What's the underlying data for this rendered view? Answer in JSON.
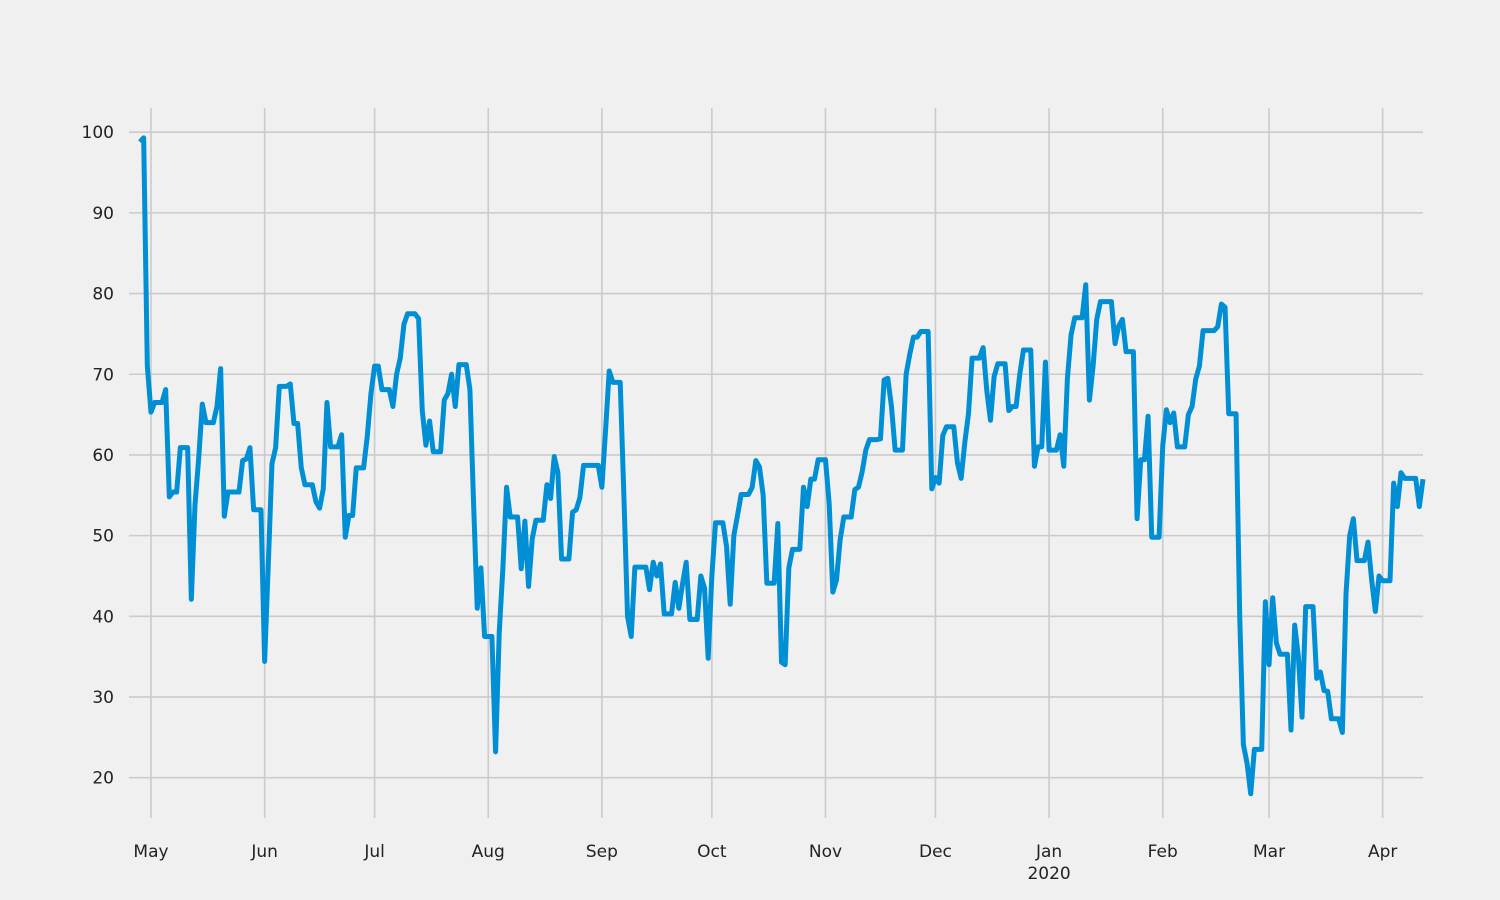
{
  "chart_data": {
    "type": "line",
    "title": "",
    "xlabel": "",
    "ylabel": "",
    "grid": true,
    "legend": "none",
    "colors": {
      "background": "#f0f0f0",
      "grid": "#cbcbcb",
      "line": "#008fd5",
      "text": "#222222"
    },
    "xlim": [
      "2019-04-25",
      "2020-04-12"
    ],
    "ylim": [
      15,
      103
    ],
    "x_ticks": [
      {
        "date": "2019-05-01",
        "label": "May",
        "sublabel": ""
      },
      {
        "date": "2019-06-01",
        "label": "Jun",
        "sublabel": ""
      },
      {
        "date": "2019-07-01",
        "label": "Jul",
        "sublabel": ""
      },
      {
        "date": "2019-08-01",
        "label": "Aug",
        "sublabel": ""
      },
      {
        "date": "2019-09-01",
        "label": "Sep",
        "sublabel": ""
      },
      {
        "date": "2019-10-01",
        "label": "Oct",
        "sublabel": ""
      },
      {
        "date": "2019-11-01",
        "label": "Nov",
        "sublabel": ""
      },
      {
        "date": "2019-12-01",
        "label": "Dec",
        "sublabel": ""
      },
      {
        "date": "2020-01-01",
        "label": "Jan",
        "sublabel": "2020"
      },
      {
        "date": "2020-02-01",
        "label": "Feb",
        "sublabel": ""
      },
      {
        "date": "2020-03-01",
        "label": "Mar",
        "sublabel": ""
      },
      {
        "date": "2020-04-01",
        "label": "Apr",
        "sublabel": ""
      }
    ],
    "y_ticks": [
      20,
      30,
      40,
      50,
      60,
      70,
      80,
      90,
      100
    ],
    "series": [
      {
        "x": [
          "2019-04-28",
          "2019-04-29",
          "2019-04-30",
          "2019-05-01",
          "2019-05-02",
          "2019-05-03",
          "2019-05-04",
          "2019-05-05",
          "2019-05-06",
          "2019-05-07",
          "2019-05-08",
          "2019-05-09",
          "2019-05-10",
          "2019-05-11",
          "2019-05-12",
          "2019-05-13",
          "2019-05-14",
          "2019-05-15",
          "2019-05-16",
          "2019-05-17",
          "2019-05-18",
          "2019-05-19",
          "2019-05-20",
          "2019-05-21",
          "2019-05-22",
          "2019-05-23",
          "2019-05-24",
          "2019-05-25",
          "2019-05-26",
          "2019-05-27",
          "2019-05-28",
          "2019-05-29",
          "2019-05-30",
          "2019-05-31",
          "2019-06-01",
          "2019-06-02",
          "2019-06-03",
          "2019-06-04",
          "2019-06-05",
          "2019-06-06",
          "2019-06-07",
          "2019-06-08",
          "2019-06-09",
          "2019-06-10",
          "2019-06-11",
          "2019-06-12",
          "2019-06-13",
          "2019-06-14",
          "2019-06-15",
          "2019-06-16",
          "2019-06-17",
          "2019-06-18",
          "2019-06-19",
          "2019-06-20",
          "2019-06-21",
          "2019-06-22",
          "2019-06-23",
          "2019-06-24",
          "2019-06-25",
          "2019-06-26",
          "2019-06-27",
          "2019-06-28",
          "2019-06-29",
          "2019-06-30",
          "2019-07-01",
          "2019-07-02",
          "2019-07-03",
          "2019-07-04",
          "2019-07-05",
          "2019-07-06",
          "2019-07-07",
          "2019-07-08",
          "2019-07-09",
          "2019-07-10",
          "2019-07-11",
          "2019-07-12",
          "2019-07-13",
          "2019-07-14",
          "2019-07-15",
          "2019-07-16",
          "2019-07-17",
          "2019-07-18",
          "2019-07-19",
          "2019-07-20",
          "2019-07-21",
          "2019-07-22",
          "2019-07-23",
          "2019-07-24",
          "2019-07-25",
          "2019-07-26",
          "2019-07-27",
          "2019-07-28",
          "2019-07-29",
          "2019-07-30",
          "2019-07-31",
          "2019-08-01",
          "2019-08-02",
          "2019-08-03",
          "2019-08-04",
          "2019-08-05",
          "2019-08-06",
          "2019-08-07",
          "2019-08-08",
          "2019-08-09",
          "2019-08-10",
          "2019-08-11",
          "2019-08-12",
          "2019-08-13",
          "2019-08-14",
          "2019-08-15",
          "2019-08-16",
          "2019-08-17",
          "2019-08-18",
          "2019-08-19",
          "2019-08-20",
          "2019-08-21",
          "2019-08-22",
          "2019-08-23",
          "2019-08-24",
          "2019-08-25",
          "2019-08-26",
          "2019-08-27",
          "2019-08-28",
          "2019-08-29",
          "2019-08-30",
          "2019-08-31",
          "2019-09-01",
          "2019-09-02",
          "2019-09-03",
          "2019-09-04",
          "2019-09-05",
          "2019-09-06",
          "2019-09-07",
          "2019-09-08",
          "2019-09-09",
          "2019-09-10",
          "2019-09-11",
          "2019-09-12",
          "2019-09-13",
          "2019-09-14",
          "2019-09-15",
          "2019-09-16",
          "2019-09-17",
          "2019-09-18",
          "2019-09-19",
          "2019-09-20",
          "2019-09-21",
          "2019-09-22",
          "2019-09-23",
          "2019-09-24",
          "2019-09-25",
          "2019-09-26",
          "2019-09-27",
          "2019-09-28",
          "2019-09-29",
          "2019-09-30",
          "2019-10-01",
          "2019-10-02",
          "2019-10-03",
          "2019-10-04",
          "2019-10-05",
          "2019-10-06",
          "2019-10-07",
          "2019-10-08",
          "2019-10-09",
          "2019-10-10",
          "2019-10-11",
          "2019-10-12",
          "2019-10-13",
          "2019-10-14",
          "2019-10-15",
          "2019-10-16",
          "2019-10-17",
          "2019-10-18",
          "2019-10-19",
          "2019-10-20",
          "2019-10-21",
          "2019-10-22",
          "2019-10-23",
          "2019-10-24",
          "2019-10-25",
          "2019-10-26",
          "2019-10-27",
          "2019-10-28",
          "2019-10-29",
          "2019-10-30",
          "2019-10-31",
          "2019-11-01",
          "2019-11-02",
          "2019-11-03",
          "2019-11-04",
          "2019-11-05",
          "2019-11-06",
          "2019-11-07",
          "2019-11-08",
          "2019-11-09",
          "2019-11-10",
          "2019-11-11",
          "2019-11-12",
          "2019-11-13",
          "2019-11-14",
          "2019-11-15",
          "2019-11-16",
          "2019-11-17",
          "2019-11-18",
          "2019-11-19",
          "2019-11-20",
          "2019-11-21",
          "2019-11-22",
          "2019-11-23",
          "2019-11-24",
          "2019-11-25",
          "2019-11-26",
          "2019-11-27",
          "2019-11-28",
          "2019-11-29",
          "2019-11-30",
          "2019-12-01",
          "2019-12-02",
          "2019-12-03",
          "2019-12-04",
          "2019-12-05",
          "2019-12-06",
          "2019-12-07",
          "2019-12-08",
          "2019-12-09",
          "2019-12-10",
          "2019-12-11",
          "2019-12-12",
          "2019-12-13",
          "2019-12-14",
          "2019-12-15",
          "2019-12-16",
          "2019-12-17",
          "2019-12-18",
          "2019-12-19",
          "2019-12-20",
          "2019-12-21",
          "2019-12-22",
          "2019-12-23",
          "2019-12-24",
          "2019-12-25",
          "2019-12-26",
          "2019-12-27",
          "2019-12-28",
          "2019-12-29",
          "2019-12-30",
          "2019-12-31",
          "2020-01-01",
          "2020-01-02",
          "2020-01-03",
          "2020-01-04",
          "2020-01-05",
          "2020-01-06",
          "2020-01-07",
          "2020-01-08",
          "2020-01-09",
          "2020-01-10",
          "2020-01-11",
          "2020-01-12",
          "2020-01-13",
          "2020-01-14",
          "2020-01-15",
          "2020-01-16",
          "2020-01-17",
          "2020-01-18",
          "2020-01-19",
          "2020-01-20",
          "2020-01-21",
          "2020-01-22",
          "2020-01-23",
          "2020-01-24",
          "2020-01-25",
          "2020-01-26",
          "2020-01-27",
          "2020-01-28",
          "2020-01-29",
          "2020-01-30",
          "2020-01-31",
          "2020-02-01",
          "2020-02-02",
          "2020-02-03",
          "2020-02-04",
          "2020-02-05",
          "2020-02-06",
          "2020-02-07",
          "2020-02-08",
          "2020-02-09",
          "2020-02-10",
          "2020-02-11",
          "2020-02-12",
          "2020-02-13",
          "2020-02-14",
          "2020-02-15",
          "2020-02-16",
          "2020-02-17",
          "2020-02-18",
          "2020-02-19",
          "2020-02-20",
          "2020-02-21",
          "2020-02-22",
          "2020-02-23",
          "2020-02-24",
          "2020-02-25",
          "2020-02-26",
          "2020-02-27",
          "2020-02-28",
          "2020-02-29",
          "2020-03-01",
          "2020-03-02",
          "2020-03-03",
          "2020-03-04",
          "2020-03-05",
          "2020-03-06",
          "2020-03-07",
          "2020-03-08",
          "2020-03-09",
          "2020-03-10",
          "2020-03-11",
          "2020-03-12",
          "2020-03-13",
          "2020-03-14",
          "2020-03-15",
          "2020-03-16",
          "2020-03-17",
          "2020-03-18",
          "2020-03-19",
          "2020-03-20",
          "2020-03-21",
          "2020-03-22",
          "2020-03-23",
          "2020-03-24",
          "2020-03-25",
          "2020-03-26",
          "2020-03-27",
          "2020-03-28",
          "2020-03-29",
          "2020-03-30",
          "2020-03-31",
          "2020-04-01",
          "2020-04-02",
          "2020-04-03",
          "2020-04-04",
          "2020-04-05",
          "2020-04-06",
          "2020-04-07",
          "2020-04-08",
          "2020-04-09",
          "2020-04-10",
          "2020-04-11",
          "2020-04-12"
        ],
        "values": [
          98.8,
          99.3,
          71,
          65.3,
          66.5,
          66.5,
          66.5,
          68.1,
          54.8,
          55.4,
          55.4,
          60.9,
          60.9,
          60.9,
          42.1,
          53.8,
          59.5,
          66.3,
          64,
          64,
          64,
          66,
          70.7,
          52.4,
          55.4,
          55.4,
          55.4,
          55.4,
          59.3,
          59.5,
          60.9,
          53.2,
          53.2,
          53.2,
          34.4,
          46.5,
          58.9,
          60.9,
          68.5,
          68.5,
          68.5,
          68.8,
          63.9,
          63.9,
          58.4,
          56.3,
          56.3,
          56.3,
          54.2,
          53.4,
          55.8,
          66.5,
          61,
          61,
          61,
          62.5,
          49.8,
          52.5,
          52.5,
          58.4,
          58.4,
          58.4,
          62.3,
          67.6,
          71,
          71,
          68.1,
          68.1,
          68.1,
          66,
          70,
          72,
          76.2,
          77.5,
          77.5,
          77.5,
          76.9,
          65.5,
          61.2,
          64.2,
          60.4,
          60.4,
          60.4,
          66.8,
          67.6,
          70,
          66,
          71.2,
          71.2,
          71.2,
          68.1,
          54,
          41,
          46,
          37.5,
          37.5,
          37.5,
          23.2,
          38,
          46,
          56,
          52.3,
          52.3,
          52.3,
          45.9,
          51.8,
          43.7,
          49.6,
          51.9,
          51.9,
          51.9,
          56.3,
          54.6,
          59.8,
          57.8,
          47.1,
          47.1,
          47.1,
          52.9,
          53.2,
          54.7,
          58.7,
          58.7,
          58.7,
          58.7,
          58.7,
          56,
          63,
          70.4,
          69,
          69,
          69,
          55,
          40,
          37.5,
          46.1,
          46.1,
          46.1,
          46.1,
          43.3,
          46.7,
          45,
          46.5,
          40.3,
          40.3,
          40.3,
          44.2,
          41,
          44,
          46.7,
          39.6,
          39.6,
          39.6,
          45,
          43.5,
          34.8,
          45,
          51.6,
          51.6,
          51.6,
          48.7,
          41.5,
          50,
          52.5,
          55.1,
          55.1,
          55.1,
          56,
          59.3,
          58.5,
          55,
          44.1,
          44.1,
          44.1,
          51.5,
          34.3,
          34,
          46,
          48.3,
          48.3,
          48.3,
          56,
          53.6,
          57,
          57,
          59.4,
          59.4,
          59.4,
          54,
          43,
          44.5,
          49.5,
          52.3,
          52.3,
          52.3,
          55.7,
          56,
          57.9,
          60.6,
          61.9,
          61.9,
          61.9,
          62,
          69.3,
          69.5,
          66,
          60.6,
          60.6,
          60.6,
          70,
          72.5,
          74.6,
          74.6,
          75.3,
          75.3,
          75.3,
          55.8,
          57.2,
          56.5,
          62.4,
          63.5,
          63.5,
          63.5,
          59,
          57.1,
          61.5,
          65.1,
          72,
          72,
          72,
          73.3,
          68,
          64.3,
          69.7,
          71.3,
          71.3,
          71.3,
          65.5,
          66,
          66,
          70,
          73,
          73,
          73,
          58.6,
          61,
          61,
          71.5,
          60.6,
          60.6,
          60.6,
          62.5,
          58.6,
          69.5,
          74.9,
          77,
          77,
          77,
          81.1,
          66.8,
          71,
          76.8,
          79,
          79,
          79,
          79,
          73.8,
          76,
          76.8,
          72.8,
          72.8,
          72.8,
          52.1,
          59.4,
          59.4,
          64.8,
          49.8,
          49.8,
          49.8,
          61.1,
          65.6,
          64,
          65.2,
          61,
          61,
          61,
          65,
          66,
          69.4,
          71,
          75.4,
          75.4,
          75.4,
          75.4,
          75.9,
          78.7,
          78.3,
          65.1,
          65.1,
          65.1,
          40,
          24.1,
          21.8,
          18,
          23.5,
          23.5,
          23.5,
          41.8,
          34,
          42.3,
          36.7,
          35.3,
          35.3,
          35.3,
          25.9,
          38.9,
          35,
          27.5,
          41.2,
          41.2,
          41.2,
          32.3,
          33.1,
          30.8,
          30.7,
          27.3,
          27.3,
          27.3,
          25.6,
          42.8,
          50,
          52.1,
          46.9,
          46.9,
          46.9,
          49.2,
          44.5,
          40.6,
          45,
          44.4,
          44.4,
          44.4,
          56.5,
          53.6,
          57.8,
          57.1,
          57.1,
          57.1,
          57.1,
          53.6,
          57
        ]
      }
    ]
  }
}
